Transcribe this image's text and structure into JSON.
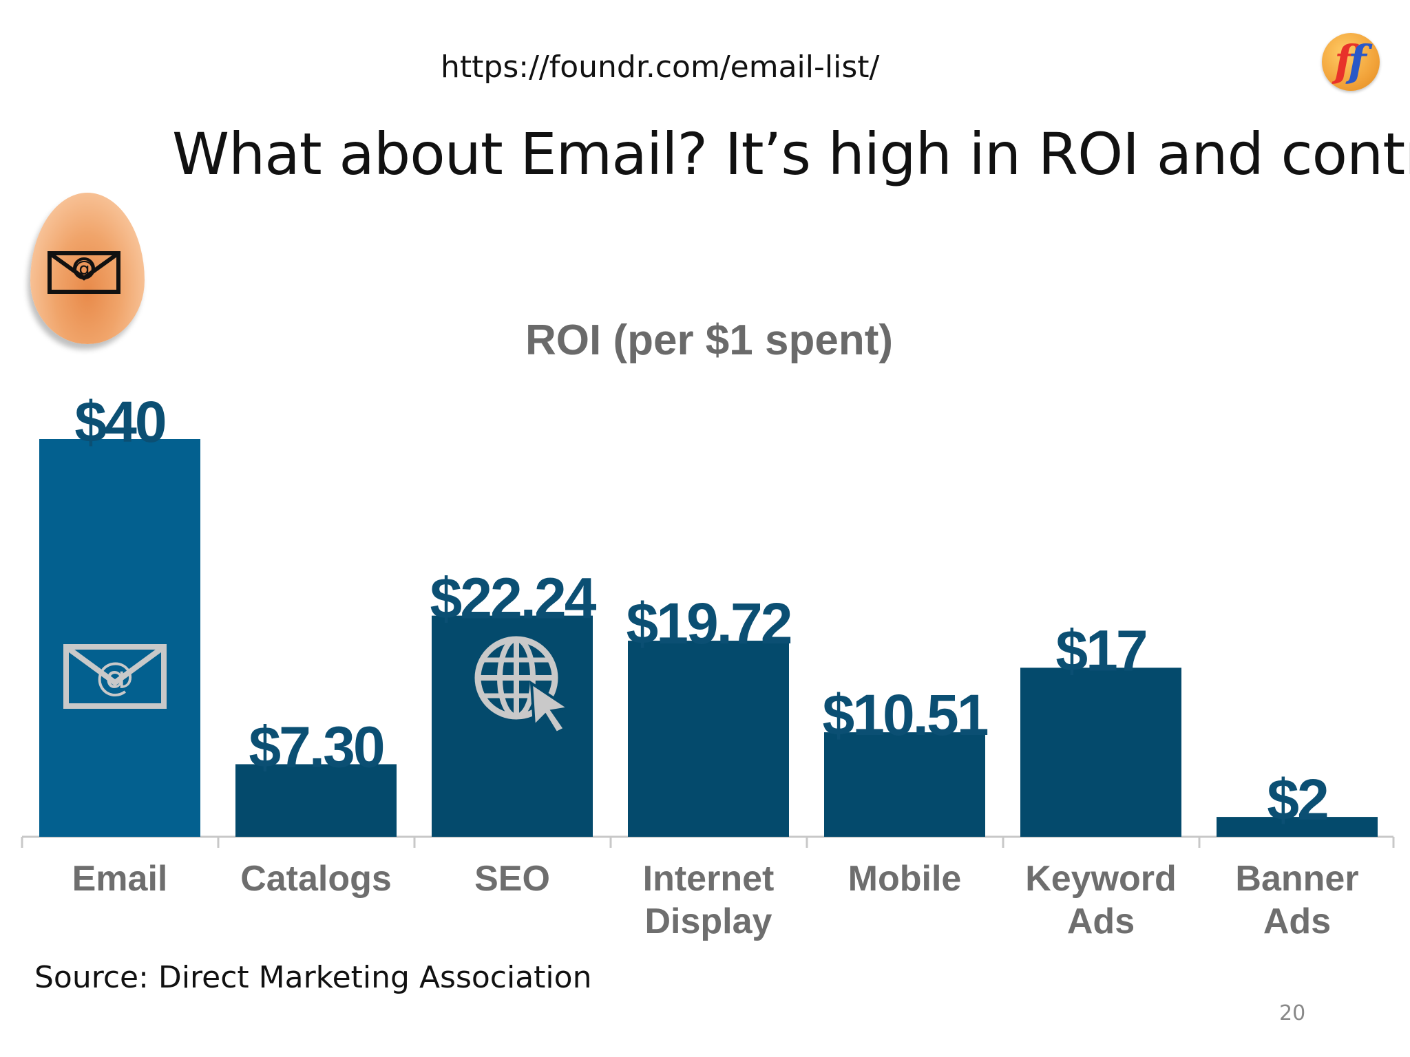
{
  "slide": {
    "url": "https://foundr.com/email-list/",
    "title": "What about Email? It’s high in ROI and control",
    "source": "Source: Direct Marketing Association",
    "page_number": "20",
    "logo_text": "ff"
  },
  "colors": {
    "email_bar": "#03608f",
    "other_bars": "#044a6c",
    "value_label": "#0b4f73",
    "category_label": "#6e6e6e",
    "chart_title": "#6a6a6a",
    "axis": "#c8c8c8",
    "icon": "#c9c9c9"
  },
  "icons": {
    "egg": "email-envelope-icon",
    "email_bar": "email-envelope-icon",
    "seo_bar": "globe-cursor-icon"
  },
  "chart_data": {
    "type": "bar",
    "title": "ROI (per $1 spent)",
    "xlabel": "",
    "ylabel": "",
    "ylim": [
      0,
      40
    ],
    "grid": false,
    "legend": "none",
    "categories": [
      [
        "Email"
      ],
      [
        "Catalogs"
      ],
      [
        "SEO"
      ],
      [
        "Internet",
        "Display"
      ],
      [
        "Mobile"
      ],
      [
        "Keyword",
        "Ads"
      ],
      [
        "Banner",
        "Ads"
      ]
    ],
    "values": [
      40,
      7.3,
      22.24,
      19.72,
      10.51,
      17,
      2
    ],
    "value_labels": [
      "$40",
      "$7.30",
      "$22.24",
      "$19.72",
      "$10.51",
      "$17",
      "$2"
    ]
  }
}
